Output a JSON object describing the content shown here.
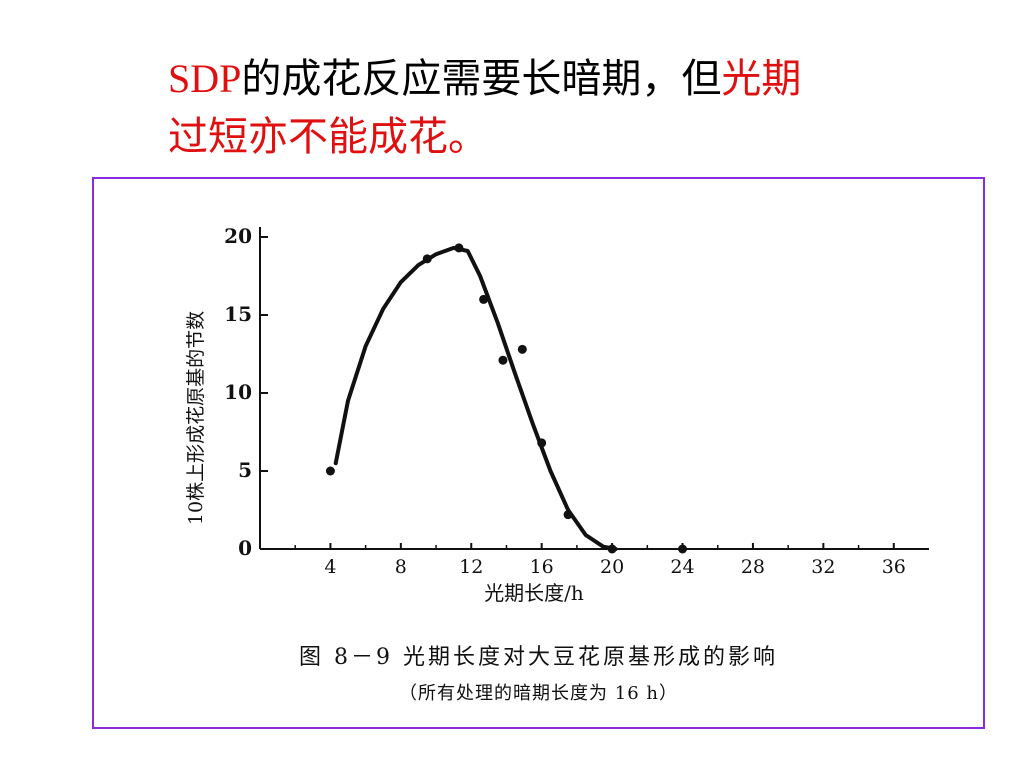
{
  "slide": {
    "title_parts": [
      "SDP",
      "的成花反应需要长暗期，但",
      "光期",
      "过短亦不能成花。"
    ],
    "accent_color": "#e01010",
    "frame_color": "#8a2be2"
  },
  "figure": {
    "caption": "图 8－9   光期长度对大豆花原基形成的影响",
    "subcaption": "（所有处理的暗期长度为 16 h）"
  },
  "chart_data": {
    "type": "scatter",
    "xlabel": "光期长度/h",
    "ylabel": "10株上形成花原基的节数",
    "xlim": [
      0,
      38
    ],
    "ylim": [
      0,
      20
    ],
    "x_ticks": [
      4,
      8,
      12,
      16,
      20,
      24,
      28,
      32,
      36
    ],
    "y_ticks": [
      0,
      5,
      10,
      15,
      20
    ],
    "grid": false,
    "series": [
      {
        "points": [
          {
            "x": 4,
            "y": 5
          },
          {
            "x": 9.5,
            "y": 18.6
          },
          {
            "x": 11.3,
            "y": 19.3
          },
          {
            "x": 12.7,
            "y": 16
          },
          {
            "x": 13.8,
            "y": 12.1
          },
          {
            "x": 14.9,
            "y": 12.8
          },
          {
            "x": 16,
            "y": 6.8
          },
          {
            "x": 17.5,
            "y": 2.2
          },
          {
            "x": 20,
            "y": 0
          },
          {
            "x": 24,
            "y": 0
          }
        ],
        "fit_curve": [
          {
            "x": 4.3,
            "y": 5.5
          },
          {
            "x": 5,
            "y": 9.5
          },
          {
            "x": 6,
            "y": 13
          },
          {
            "x": 7,
            "y": 15.4
          },
          {
            "x": 8,
            "y": 17.1
          },
          {
            "x": 9,
            "y": 18.2
          },
          {
            "x": 10,
            "y": 18.9
          },
          {
            "x": 11,
            "y": 19.3
          },
          {
            "x": 11.8,
            "y": 19.1
          },
          {
            "x": 12.5,
            "y": 17.5
          },
          {
            "x": 13.5,
            "y": 14.5
          },
          {
            "x": 14.5,
            "y": 11.2
          },
          {
            "x": 15.5,
            "y": 8
          },
          {
            "x": 16.5,
            "y": 5
          },
          {
            "x": 17.5,
            "y": 2.5
          },
          {
            "x": 18.5,
            "y": 0.9
          },
          {
            "x": 19.5,
            "y": 0.15
          },
          {
            "x": 20.2,
            "y": 0
          }
        ]
      }
    ]
  }
}
